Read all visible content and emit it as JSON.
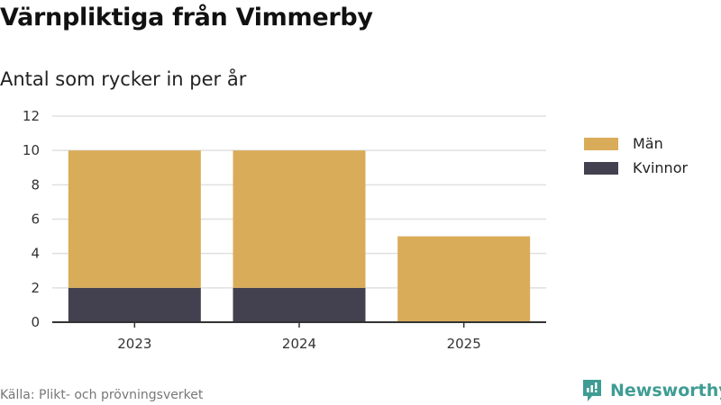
{
  "title": "Värnpliktiga från Vimmerby",
  "subtitle": "Antal som rycker in per år",
  "source": "Källa: Plikt- och prövningsverket",
  "logo_text": "Newsworthy",
  "colors": {
    "men": "#d9ac5a",
    "women": "#43414f",
    "brand": "#3f9c94"
  },
  "chart_data": {
    "type": "bar",
    "stacked": true,
    "title": "Antal som rycker in per år",
    "categories": [
      "2023",
      "2024",
      "2025"
    ],
    "series": [
      {
        "name": "Kvinnor",
        "values": [
          2,
          2,
          0
        ]
      },
      {
        "name": "Män",
        "values": [
          8,
          8,
          5
        ]
      }
    ],
    "ylim": [
      0,
      12
    ],
    "yticks": [
      0,
      2,
      4,
      6,
      8,
      10,
      12
    ],
    "grid": true,
    "legend": [
      {
        "label": "Män"
      },
      {
        "label": "Kvinnor"
      }
    ],
    "legend_position": "right"
  }
}
